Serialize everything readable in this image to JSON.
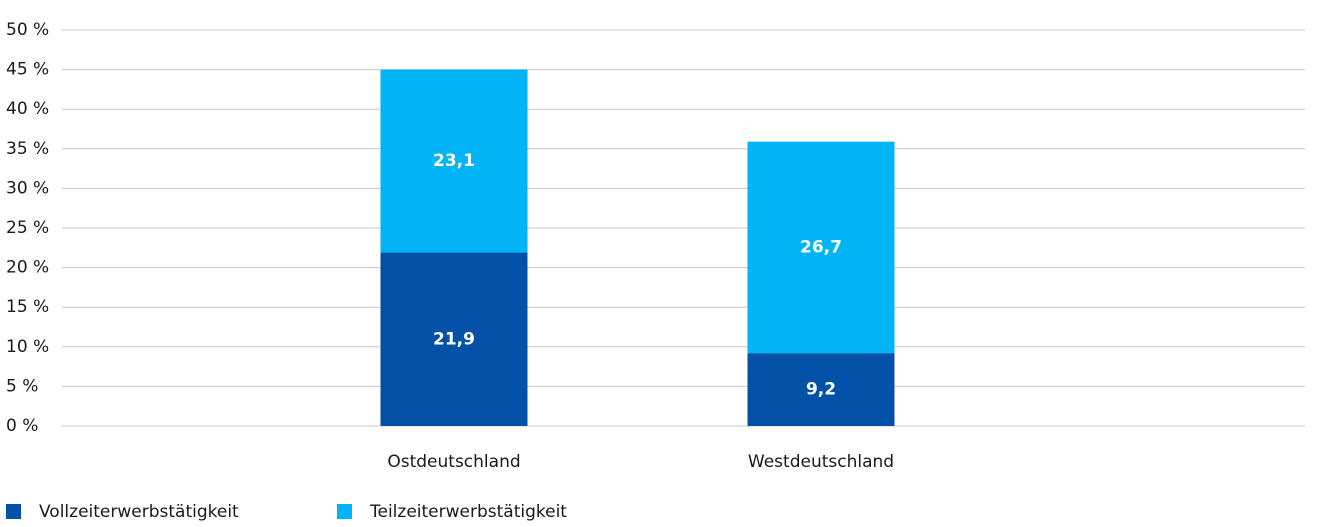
{
  "chart_data": {
    "type": "stacked_bar",
    "categories": [
      "Ostdeutschland",
      "Westdeutschland"
    ],
    "series": [
      {
        "name": "Vollzeiterwerbstätigkeit",
        "color": "#0451a8",
        "values": [
          21.9,
          9.2
        ],
        "value_labels": [
          "21,9",
          "9,2"
        ]
      },
      {
        "name": "Teilzeiterwerbstätigkeit",
        "color": "#00b4f5",
        "values": [
          23.1,
          26.7
        ],
        "value_labels": [
          "23,1",
          "26,7"
        ]
      }
    ],
    "ylim": [
      0,
      50
    ],
    "yticks": [
      {
        "value": 0,
        "label": "0 %"
      },
      {
        "value": 5,
        "label": "5 %"
      },
      {
        "value": 10,
        "label": "10 %"
      },
      {
        "value": 15,
        "label": "15 %"
      },
      {
        "value": 20,
        "label": "20 %"
      },
      {
        "value": 25,
        "label": "25 %"
      },
      {
        "value": 30,
        "label": "30 %"
      },
      {
        "value": 35,
        "label": "35 %"
      },
      {
        "value": 40,
        "label": "40 %"
      },
      {
        "value": 45,
        "label": "45 %"
      },
      {
        "value": 50,
        "label": "50 %"
      }
    ],
    "grid": true,
    "legend": "bottom"
  }
}
